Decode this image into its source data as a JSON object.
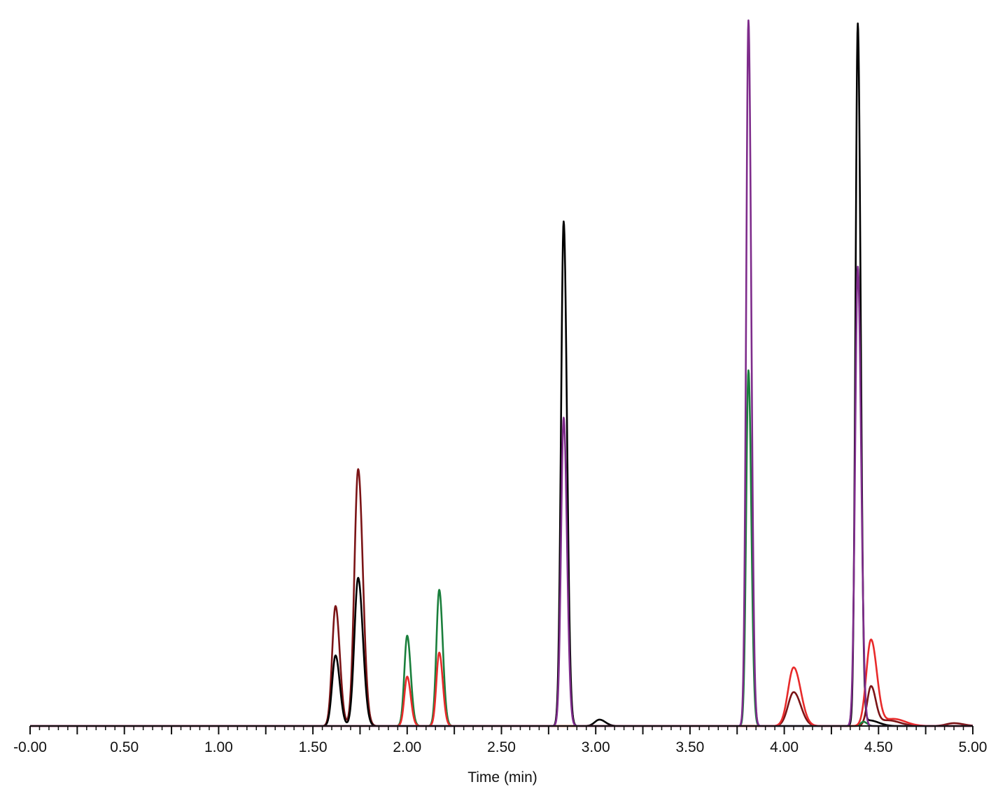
{
  "chart_data": {
    "type": "line",
    "title": "",
    "xlabel": "Time (min)",
    "ylabel": "",
    "xlim": [
      0,
      5
    ],
    "ylim": [
      0,
      1
    ],
    "x_tick_labels": [
      "-0.00",
      "0.50",
      "1.00",
      "1.50",
      "2.00",
      "2.50",
      "3.00",
      "3.50",
      "4.00",
      "4.50",
      "5.00"
    ],
    "x_ticks": [
      0,
      0.5,
      1,
      1.5,
      2,
      2.5,
      3,
      3.5,
      4,
      4.5,
      5
    ],
    "minor_tick_step": 0.05,
    "grid": false,
    "legend": "none",
    "series": [
      {
        "color": "#7b1416",
        "peaks": [
          {
            "t": 1.62,
            "h": 0.17,
            "w": 0.018
          },
          {
            "t": 1.74,
            "h": 0.364,
            "w": 0.02
          },
          {
            "t": 4.05,
            "h": 0.048,
            "w": 0.03
          },
          {
            "t": 4.46,
            "h": 0.055,
            "w": 0.02
          },
          {
            "t": 4.55,
            "h": 0.008,
            "w": 0.05
          },
          {
            "t": 4.9,
            "h": 0.004,
            "w": 0.04
          }
        ]
      },
      {
        "color": "#000000",
        "peaks": [
          {
            "t": 1.62,
            "h": 0.1,
            "w": 0.018
          },
          {
            "t": 1.74,
            "h": 0.21,
            "w": 0.02
          },
          {
            "t": 2.83,
            "h": 0.715,
            "w": 0.014
          },
          {
            "t": 3.02,
            "h": 0.009,
            "w": 0.025
          },
          {
            "t": 4.39,
            "h": 0.993,
            "w": 0.012
          },
          {
            "t": 4.45,
            "h": 0.008,
            "w": 0.04
          }
        ]
      },
      {
        "color": "#1a7f3c",
        "peaks": [
          {
            "t": 2.0,
            "h": 0.128,
            "w": 0.015
          },
          {
            "t": 2.17,
            "h": 0.193,
            "w": 0.015
          },
          {
            "t": 3.81,
            "h": 0.504,
            "w": 0.012
          },
          {
            "t": 4.42,
            "h": 0.006,
            "w": 0.015
          }
        ]
      },
      {
        "color": "#e82a2a",
        "peaks": [
          {
            "t": 2.0,
            "h": 0.07,
            "w": 0.015
          },
          {
            "t": 2.17,
            "h": 0.104,
            "w": 0.015
          },
          {
            "t": 4.05,
            "h": 0.083,
            "w": 0.03
          },
          {
            "t": 4.46,
            "h": 0.122,
            "w": 0.025
          },
          {
            "t": 4.58,
            "h": 0.01,
            "w": 0.05
          }
        ]
      },
      {
        "color": "#7e2c8b",
        "peaks": [
          {
            "t": 2.83,
            "h": 0.437,
            "w": 0.014
          },
          {
            "t": 3.81,
            "h": 1.0,
            "w": 0.012
          },
          {
            "t": 4.39,
            "h": 0.651,
            "w": 0.014
          }
        ]
      }
    ]
  }
}
